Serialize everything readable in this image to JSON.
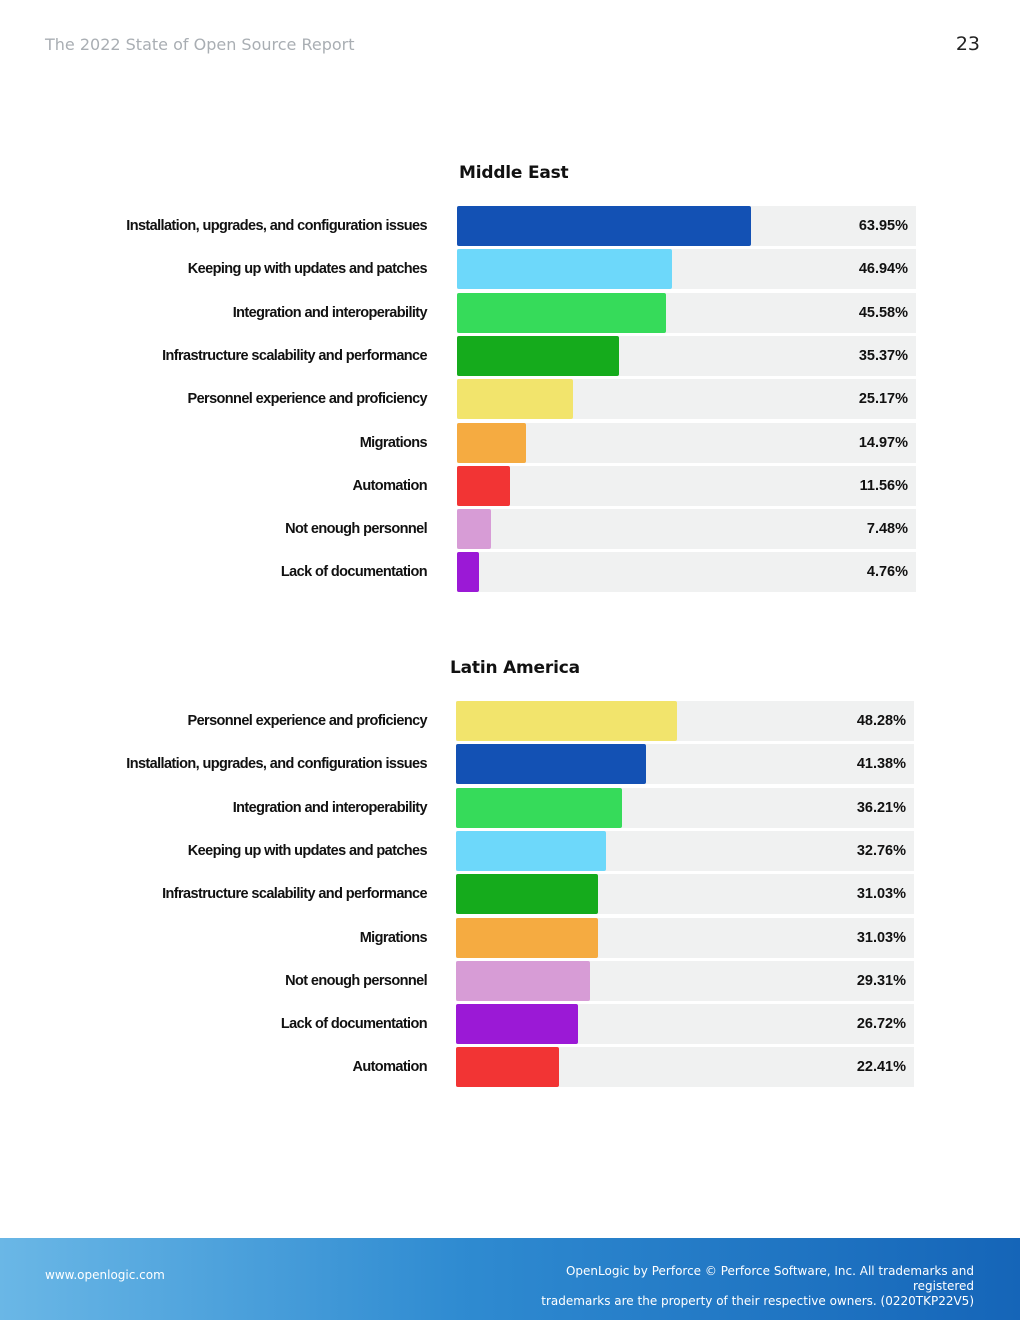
{
  "header": {
    "title": "The 2022 State of Open Source Report",
    "page_number": "23"
  },
  "chart_data": [
    {
      "type": "bar",
      "orientation": "horizontal",
      "title": "Middle East",
      "unit": "%",
      "xlim": [
        0,
        100
      ],
      "categories": [
        "Installation, upgrades, and configuration issues",
        "Keeping up with updates and patches",
        "Integration and interoperability",
        "Infrastructure scalability and performance",
        "Personnel experience and proficiency",
        "Migrations",
        "Automation",
        "Not enough personnel",
        "Lack of documentation"
      ],
      "values": [
        63.95,
        46.94,
        45.58,
        35.37,
        25.17,
        14.97,
        11.56,
        7.48,
        4.76
      ],
      "value_labels": [
        "63.95%",
        "46.94%",
        "45.58%",
        "35.37%",
        "25.17%",
        "14.97%",
        "11.56%",
        "7.48%",
        "4.76%"
      ],
      "colors": [
        "#1351b4",
        "#6dd8fa",
        "#36db5a",
        "#15ab1c",
        "#f2e46c",
        "#f5ab41",
        "#f23434",
        "#d79cd6",
        "#9b19d6"
      ]
    },
    {
      "type": "bar",
      "orientation": "horizontal",
      "title": "Latin America",
      "unit": "%",
      "xlim": [
        0,
        100
      ],
      "categories": [
        "Personnel experience and proficiency",
        "Installation, upgrades, and configuration issues",
        "Integration and interoperability",
        "Keeping up with updates and patches",
        "Infrastructure scalability and performance",
        "Migrations",
        "Not enough personnel",
        "Lack of documentation",
        "Automation"
      ],
      "values": [
        48.28,
        41.38,
        36.21,
        32.76,
        31.03,
        31.03,
        29.31,
        26.72,
        22.41
      ],
      "value_labels": [
        "48.28%",
        "41.38%",
        "36.21%",
        "32.76%",
        "31.03%",
        "31.03%",
        "29.31%",
        "26.72%",
        "22.41%"
      ],
      "colors": [
        "#f2e46c",
        "#1351b4",
        "#36db5a",
        "#6dd8fa",
        "#15ab1c",
        "#f5ab41",
        "#d79cd6",
        "#9b19d6",
        "#f23434"
      ]
    }
  ],
  "footer": {
    "url": "www.openlogic.com",
    "legal_line1": "OpenLogic by Perforce © Perforce Software, Inc. All trademarks and registered",
    "legal_line2": "trademarks are the property of their respective owners. (0220TKP22V5)"
  }
}
